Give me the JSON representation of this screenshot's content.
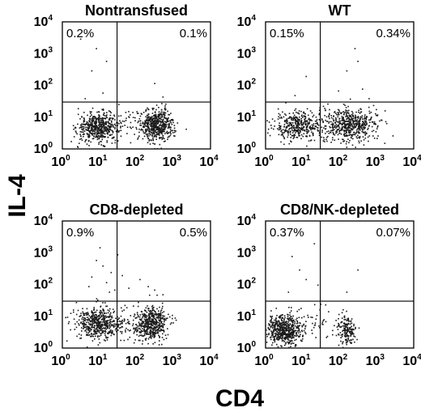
{
  "figure": {
    "xlabel": "CD4",
    "ylabel": "IL-4"
  },
  "chart_data": [
    {
      "type": "scatter",
      "title": "Nontransfused",
      "xlabel": "CD4",
      "ylabel": "IL-4",
      "xscale": "log",
      "yscale": "log",
      "xlim": [
        1,
        10000
      ],
      "ylim": [
        1,
        10000
      ],
      "xticks": [
        1,
        10,
        100,
        1000,
        10000
      ],
      "yticks": [
        1,
        10,
        100,
        1000,
        10000
      ],
      "gates": {
        "x": 30,
        "y": 30
      },
      "quadrant_labels": {
        "upper_left": "0.2%",
        "upper_right": "0.1%"
      },
      "populations": [
        {
          "x_center": 9,
          "y_center": 5,
          "x_spread": 0.28,
          "y_spread": 0.22,
          "count": 520
        },
        {
          "x_center": 350,
          "y_center": 6,
          "x_spread": 0.22,
          "y_spread": 0.25,
          "count": 520
        },
        {
          "x_center": 60,
          "y_center": 6,
          "x_spread": 0.6,
          "y_spread": 0.3,
          "count": 60
        }
      ],
      "sparse_points": [
        [
          3,
          3000
        ],
        [
          8,
          1500
        ],
        [
          15,
          600
        ],
        [
          6,
          300
        ],
        [
          300,
          120
        ],
        [
          12,
          60
        ],
        [
          4,
          40
        ],
        [
          500,
          45
        ]
      ]
    },
    {
      "type": "scatter",
      "title": "WT",
      "xlabel": "CD4",
      "ylabel": "IL-4",
      "xscale": "log",
      "yscale": "log",
      "xlim": [
        1,
        10000
      ],
      "ylim": [
        1,
        10000
      ],
      "xticks": [
        1,
        10,
        100,
        1000,
        10000
      ],
      "yticks": [
        1,
        10,
        100,
        1000,
        10000
      ],
      "gates": {
        "x": 30,
        "y": 30
      },
      "quadrant_labels": {
        "upper_left": "0.15%",
        "upper_right": "0.34%"
      },
      "populations": [
        {
          "x_center": 7,
          "y_center": 6,
          "x_spread": 0.3,
          "y_spread": 0.22,
          "count": 380
        },
        {
          "x_center": 200,
          "y_center": 6,
          "x_spread": 0.35,
          "y_spread": 0.25,
          "count": 500
        },
        {
          "x_center": 50,
          "y_center": 5,
          "x_spread": 0.6,
          "y_spread": 0.3,
          "count": 80
        }
      ],
      "sparse_points": [
        [
          150,
          300
        ],
        [
          400,
          80
        ],
        [
          250,
          1500
        ],
        [
          12,
          200
        ],
        [
          6,
          50
        ],
        [
          600,
          40
        ],
        [
          90,
          70
        ],
        [
          300,
          600
        ]
      ]
    },
    {
      "type": "scatter",
      "title": "CD8-depleted",
      "xlabel": "CD4",
      "ylabel": "IL-4",
      "xscale": "log",
      "yscale": "log",
      "xlim": [
        1,
        10000
      ],
      "ylim": [
        1,
        10000
      ],
      "xticks": [
        1,
        10,
        100,
        1000,
        10000
      ],
      "yticks": [
        1,
        10,
        100,
        1000,
        10000
      ],
      "gates": {
        "x": 30,
        "y": 30
      },
      "quadrant_labels": {
        "upper_left": "0.9%",
        "upper_right": "0.5%"
      },
      "populations": [
        {
          "x_center": 9,
          "y_center": 6,
          "x_spread": 0.3,
          "y_spread": 0.25,
          "count": 500
        },
        {
          "x_center": 250,
          "y_center": 6,
          "x_spread": 0.22,
          "y_spread": 0.27,
          "count": 480
        },
        {
          "x_center": 50,
          "y_center": 7,
          "x_spread": 0.55,
          "y_spread": 0.3,
          "count": 80
        }
      ],
      "sparse_points": [
        [
          8,
          600
        ],
        [
          12,
          400
        ],
        [
          20,
          250
        ],
        [
          6,
          180
        ],
        [
          15,
          120
        ],
        [
          30,
          900
        ],
        [
          10,
          1500
        ],
        [
          25,
          70
        ],
        [
          5,
          90
        ],
        [
          18,
          60
        ],
        [
          40,
          200
        ],
        [
          60,
          80
        ],
        [
          300,
          70
        ],
        [
          200,
          90
        ],
        [
          500,
          50
        ],
        [
          120,
          150
        ]
      ]
    },
    {
      "type": "scatter",
      "title": "CD8/NK-depleted",
      "xlabel": "CD4",
      "ylabel": "IL-4",
      "xscale": "log",
      "yscale": "log",
      "xlim": [
        1,
        10000
      ],
      "ylim": [
        1,
        10000
      ],
      "xticks": [
        1,
        10,
        100,
        1000,
        10000
      ],
      "yticks": [
        1,
        10,
        100,
        1000,
        10000
      ],
      "gates": {
        "x": 30,
        "y": 30
      },
      "quadrant_labels": {
        "upper_left": "0.37%",
        "upper_right": "0.07%"
      },
      "populations": [
        {
          "x_center": 3,
          "y_center": 4,
          "x_spread": 0.22,
          "y_spread": 0.24,
          "count": 560
        },
        {
          "x_center": 150,
          "y_center": 4,
          "x_spread": 0.12,
          "y_spread": 0.25,
          "count": 160
        },
        {
          "x_center": 20,
          "y_center": 5,
          "x_spread": 0.45,
          "y_spread": 0.3,
          "count": 60
        }
      ],
      "sparse_points": [
        [
          5,
          800
        ],
        [
          8,
          300
        ],
        [
          12,
          150
        ],
        [
          4,
          60
        ],
        [
          20,
          2000
        ],
        [
          300,
          300
        ],
        [
          150,
          60
        ],
        [
          25,
          100
        ]
      ]
    }
  ]
}
